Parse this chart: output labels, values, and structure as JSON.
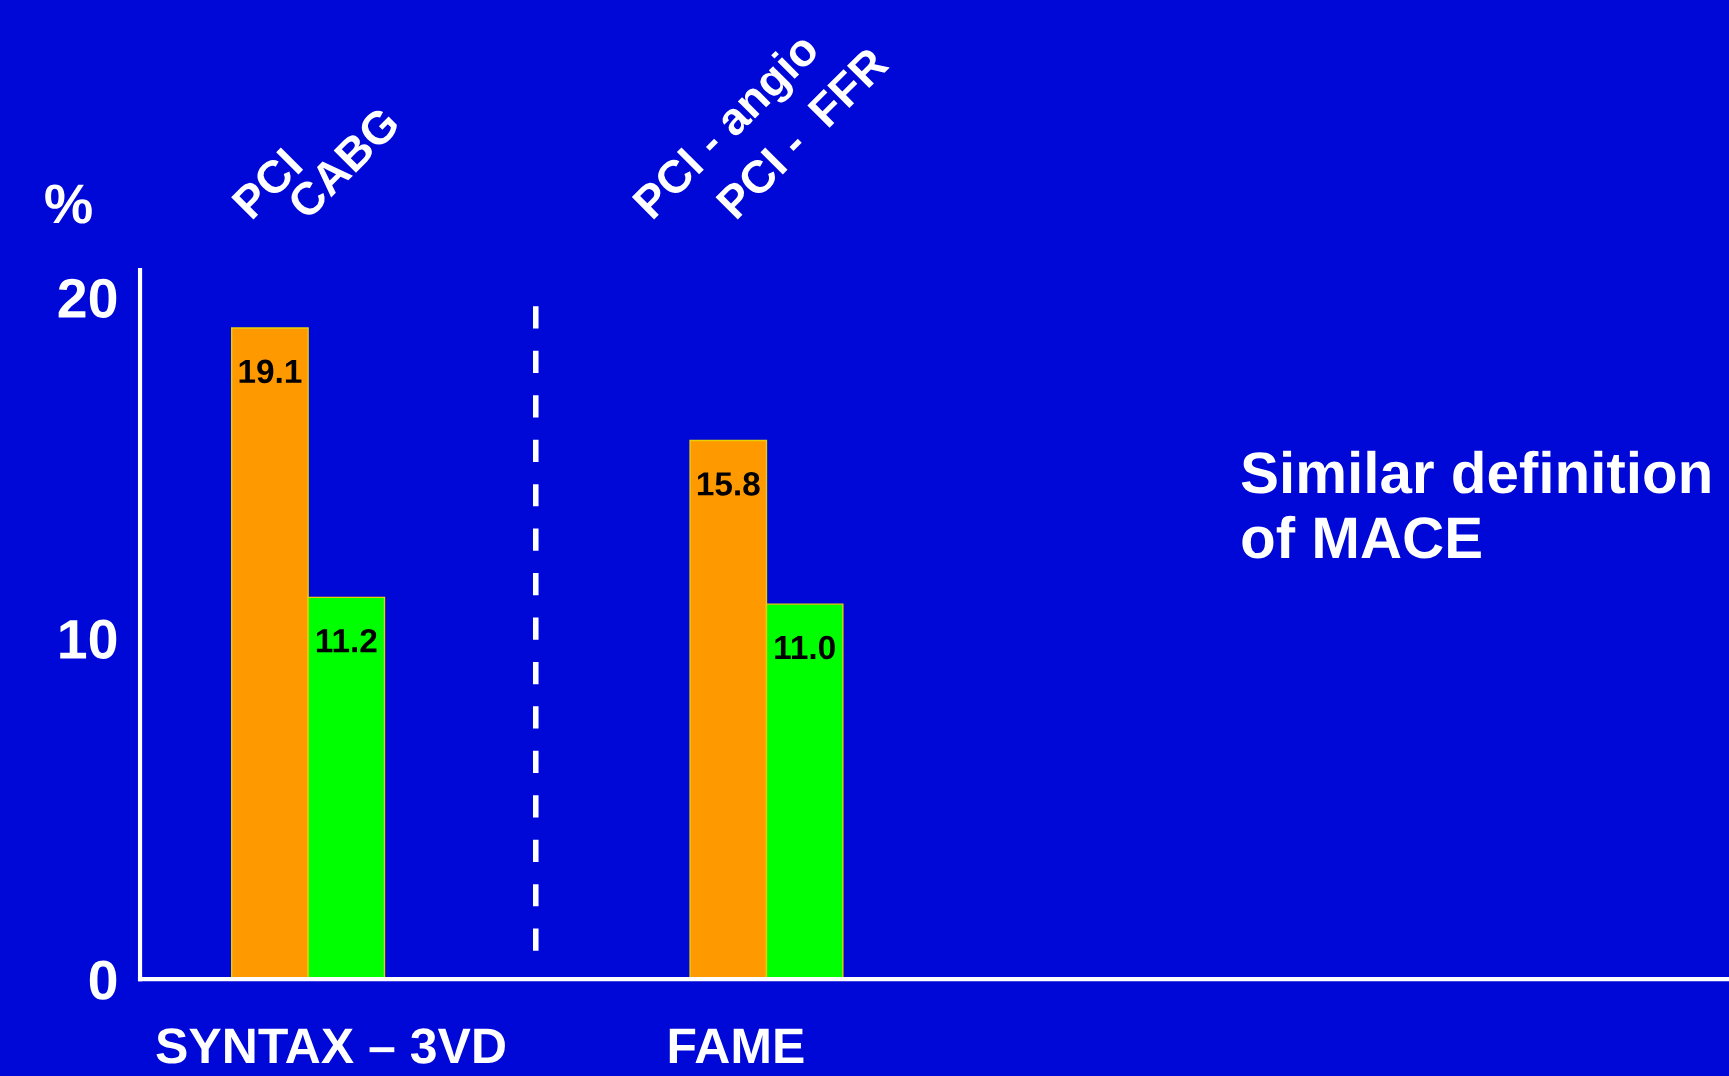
{
  "chart_data": {
    "type": "bar",
    "ylabel": "%",
    "categories": [
      "PCI",
      "CABG",
      null,
      null,
      null,
      null,
      "PCI - angio",
      "PCI -  FFR"
    ],
    "values": [
      19.1,
      11.2,
      null,
      null,
      null,
      null,
      15.8,
      11.0
    ],
    "value_labels": [
      "19.1",
      "11.2",
      null,
      null,
      null,
      null,
      "15.8",
      "11.0"
    ],
    "colors": [
      "#ff9900",
      "#00ff00",
      null,
      null,
      null,
      null,
      "#ff9900",
      "#00ff00"
    ],
    "ylim": [
      0,
      20.8
    ],
    "yticks": [
      0,
      10,
      20
    ],
    "annotations": [
      "SYNTAX – 3VD",
      "FAME",
      "Similar definition\nof MACE"
    ],
    "grid": false,
    "legend": false
  }
}
